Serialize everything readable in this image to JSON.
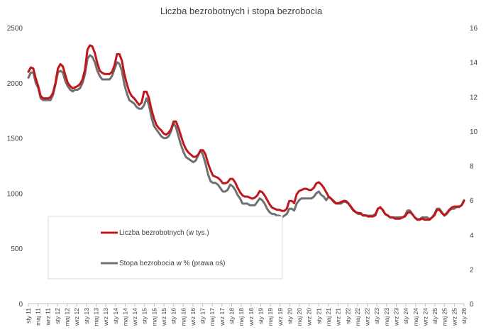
{
  "chart_data": {
    "type": "line",
    "title": "Liczba bezrobotnych i stopa bezrobocia",
    "x_tick_labels": [
      "sty 11",
      "maj 11",
      "wrz 11",
      "sty 12",
      "maj 12",
      "wrz 12",
      "sty 13",
      "maj 13",
      "wrz 13",
      "sty 14",
      "maj 14",
      "wrz 14",
      "sty 15",
      "maj 15",
      "wrz 15",
      "sty 16",
      "maj 16",
      "wrz 16",
      "sty 17",
      "maj 17",
      "wrz 17",
      "sty 18",
      "maj 18",
      "wrz 18",
      "sty 19",
      "maj 19",
      "wrz 19",
      "sty 20",
      "maj 20",
      "wrz 20",
      "sty 21",
      "maj 21",
      "wrz 21",
      "sty 22",
      "maj 22",
      "wrz 22",
      "sty 23",
      "maj 23",
      "wrz 23",
      "sty 24",
      "maj 24",
      "wrz 24",
      "sty 25",
      "maj 25",
      "wrz 25",
      "sty 26"
    ],
    "y_left": {
      "ylim": [
        0,
        2500
      ],
      "ticks": [
        "0",
        "500",
        "1000",
        "1500",
        "2000",
        "2500"
      ]
    },
    "y_right": {
      "ylim": [
        0,
        16
      ],
      "ticks": [
        "0",
        "2",
        "4",
        "6",
        "8",
        "10",
        "12",
        "14",
        "16"
      ]
    },
    "legend": {
      "placement": "bottom-left"
    },
    "grid": false,
    "series": [
      {
        "name": "Liczba bezrobotnych (w tys.)",
        "axis": "left",
        "color": "#c0171c",
        "values": [
          2100,
          2140,
          2130,
          2040,
          1970,
          1880,
          1860,
          1860,
          1860,
          1870,
          1910,
          2000,
          2130,
          2170,
          2150,
          2070,
          2000,
          1970,
          1950,
          1960,
          1970,
          1990,
          2030,
          2120,
          2300,
          2340,
          2330,
          2270,
          2180,
          2110,
          2090,
          2080,
          2080,
          2080,
          2100,
          2160,
          2260,
          2260,
          2200,
          2080,
          1990,
          1920,
          1880,
          1860,
          1830,
          1800,
          1820,
          1920,
          1920,
          1860,
          1760,
          1680,
          1620,
          1590,
          1570,
          1540,
          1530,
          1550,
          1580,
          1650,
          1650,
          1590,
          1520,
          1450,
          1400,
          1370,
          1350,
          1330,
          1330,
          1350,
          1390,
          1390,
          1350,
          1270,
          1210,
          1160,
          1150,
          1140,
          1120,
          1090,
          1090,
          1100,
          1130,
          1130,
          1100,
          1050,
          1010,
          980,
          970,
          970,
          960,
          950,
          960,
          980,
          1020,
          1010,
          980,
          940,
          900,
          870,
          860,
          850,
          850,
          840,
          840,
          860,
          930,
          930,
          910,
          990,
          1020,
          1030,
          1040,
          1040,
          1030,
          1030,
          1050,
          1090,
          1100,
          1080,
          1050,
          1010,
          970,
          950,
          930,
          910,
          910,
          920,
          930,
          930,
          910,
          880,
          850,
          830,
          820,
          820,
          800,
          800,
          790,
          790,
          790,
          800,
          860,
          870,
          850,
          810,
          800,
          780,
          780,
          770,
          770,
          770,
          780,
          790,
          820,
          830,
          810,
          780,
          760,
          760,
          770,
          760,
          760,
          760,
          780,
          800,
          850,
          850,
          820,
          800,
          820,
          850,
          870,
          880,
          880,
          880,
          890,
          930
        ]
      },
      {
        "name": "Stopa bezrobocia w % (prawa oś)",
        "axis": "right",
        "color": "#707070",
        "values": [
          13.1,
          13.4,
          13.4,
          12.8,
          12.5,
          11.9,
          11.8,
          11.8,
          11.8,
          11.8,
          12.1,
          12.7,
          13.4,
          13.5,
          13.4,
          12.9,
          12.6,
          12.4,
          12.3,
          12.4,
          12.4,
          12.5,
          12.8,
          13.3,
          14.2,
          14.4,
          14.3,
          14.0,
          13.5,
          13.2,
          13.0,
          13.0,
          13.0,
          13.0,
          13.2,
          13.6,
          14.0,
          13.9,
          13.5,
          12.7,
          12.2,
          11.8,
          11.7,
          11.6,
          11.4,
          11.3,
          11.3,
          11.5,
          11.9,
          11.5,
          10.8,
          10.3,
          10.1,
          9.9,
          9.7,
          9.6,
          9.6,
          9.7,
          10.0,
          10.5,
          10.2,
          9.7,
          9.2,
          8.8,
          8.5,
          8.4,
          8.3,
          8.2,
          8.3,
          8.6,
          8.9,
          8.6,
          8.1,
          7.5,
          7.1,
          7.0,
          7.0,
          6.9,
          6.7,
          6.5,
          6.5,
          6.6,
          6.9,
          6.8,
          6.6,
          6.3,
          6.1,
          5.8,
          5.8,
          5.8,
          5.7,
          5.7,
          5.7,
          5.9,
          6.1,
          6.0,
          5.8,
          5.5,
          5.3,
          5.2,
          5.2,
          5.1,
          5.1,
          5.0,
          5.1,
          5.2,
          5.5,
          5.5,
          5.4,
          5.8,
          6.0,
          6.1,
          6.1,
          6.1,
          6.1,
          6.1,
          6.2,
          6.4,
          6.5,
          6.3,
          6.2,
          6.0,
          6.2,
          6.1,
          5.9,
          5.8,
          5.8,
          5.8,
          5.9,
          5.9,
          5.8,
          5.6,
          5.4,
          5.3,
          5.2,
          5.2,
          5.1,
          5.1,
          5.1,
          5.1,
          5.1,
          5.2,
          5.5,
          5.6,
          5.4,
          5.2,
          5.1,
          5.0,
          5.0,
          5.0,
          5.0,
          5.0,
          5.0,
          5.1,
          5.4,
          5.4,
          5.2,
          5.0,
          4.9,
          4.9,
          5.0,
          5.0,
          5.0,
          4.9,
          5.0,
          5.2,
          5.5,
          5.5,
          5.3,
          5.1,
          5.2,
          5.4,
          5.5,
          5.5,
          5.6,
          5.6,
          5.7,
          6.0
        ]
      }
    ]
  }
}
